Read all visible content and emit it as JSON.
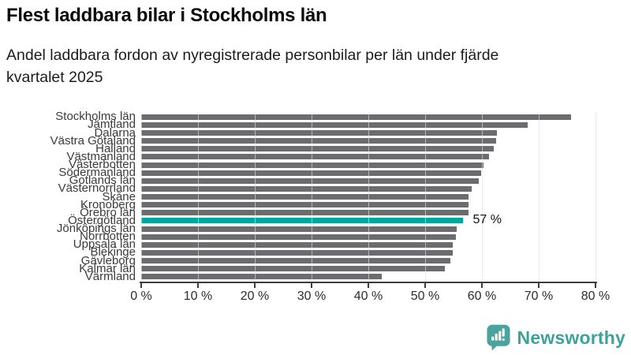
{
  "page": {
    "title": "Flest laddbara bilar i Stockholms län",
    "subtitle_line1": "Andel laddbara fordon av nyregistrerade personbilar per län under fjärde",
    "subtitle_line2": "kvartalet 2025",
    "branding": {
      "logo_text": "Newsworthy",
      "logo_icon": "newsworthy-speech-bubble-bar-chart-icon",
      "brand_color": "#3fa19b"
    }
  },
  "chart_data": {
    "type": "bar",
    "orientation": "horizontal",
    "title": "Flest laddbara bilar i Stockholms län",
    "subtitle": "Andel laddbara fordon av nyregistrerade personbilar per län under fjärde kvartalet 2025",
    "unit": "%",
    "xlim": [
      0,
      80
    ],
    "x_tick_labels": [
      "0 %",
      "10 %",
      "20 %",
      "30 %",
      "40 %",
      "50 %",
      "60 %",
      "70 %",
      "80 %"
    ],
    "grid": true,
    "legend": "none",
    "categories": [
      "Stockholms län",
      "Jämtland",
      "Dalarna",
      "Västra Götaland",
      "Halland",
      "Västmanland",
      "Västerbotten",
      "Södermanland",
      "Gotlands län",
      "Västernorrland",
      "Skåne",
      "Kronoberg",
      "Örebro län",
      "Östergötland",
      "Jönköpings län",
      "Norrbotten",
      "Uppsala län",
      "Blekinge",
      "Gävleborg",
      "Kalmar län",
      "Värmland"
    ],
    "values": [
      75.7,
      68.1,
      62.6,
      62.5,
      62.1,
      61.3,
      60.3,
      59.8,
      59.4,
      58.2,
      57.7,
      57.6,
      57.6,
      56.6,
      55.5,
      55.4,
      54.9,
      54.8,
      54.4,
      53.5,
      42.4
    ],
    "highlight": {
      "category": "Östergötland",
      "value_label": "57 %"
    },
    "colors": {
      "bar": "#6b6b70",
      "highlight_bar": "#00a69b",
      "gridline": "#d7d7d7",
      "axis": "#3d3d3d"
    }
  }
}
